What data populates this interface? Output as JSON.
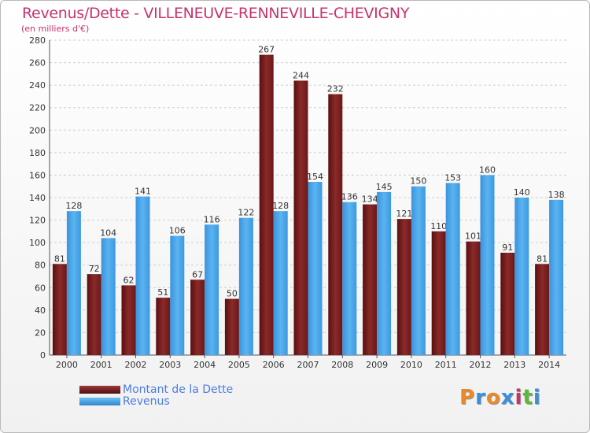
{
  "title": "Revenus/Dette - VILLENEUVE-RENNEVILLE-CHEVIGNY",
  "subtitle": "(en milliers d'€)",
  "chart_data": {
    "type": "bar",
    "title": "Revenus/Dette - VILLENEUVE-RENNEVILLE-CHEVIGNY",
    "subtitle": "(en milliers d'€)",
    "categories": [
      "2000",
      "2001",
      "2002",
      "2003",
      "2004",
      "2005",
      "2006",
      "2007",
      "2008",
      "2009",
      "2010",
      "2011",
      "2012",
      "2013",
      "2014"
    ],
    "series": [
      {
        "name": "Montant de la Dette",
        "color": "#7a1f1f",
        "values": [
          81,
          72,
          62,
          51,
          67,
          50,
          267,
          244,
          232,
          134,
          121,
          110,
          101,
          91,
          81
        ]
      },
      {
        "name": "Revenus",
        "color": "#4aa3e8",
        "values": [
          128,
          104,
          141,
          106,
          116,
          122,
          128,
          154,
          136,
          145,
          150,
          153,
          160,
          140,
          138
        ]
      }
    ],
    "ylim": [
      0,
      280
    ],
    "yticks": [
      0,
      20,
      40,
      60,
      80,
      100,
      120,
      140,
      160,
      180,
      200,
      220,
      240,
      260,
      280
    ],
    "grid": true,
    "legend": "bottom-left"
  },
  "legend": {
    "debt_label": "Montant de la Dette",
    "revenue_label": "Revenus"
  },
  "logo": {
    "letters": [
      "P",
      "r",
      "o",
      "x",
      "i",
      "t",
      "i"
    ],
    "colors": [
      "#e8892a",
      "#3a8fd8",
      "#e8892a",
      "#3a8fd8",
      "#c6336e",
      "#5cb83a",
      "#3a8fd8"
    ]
  }
}
